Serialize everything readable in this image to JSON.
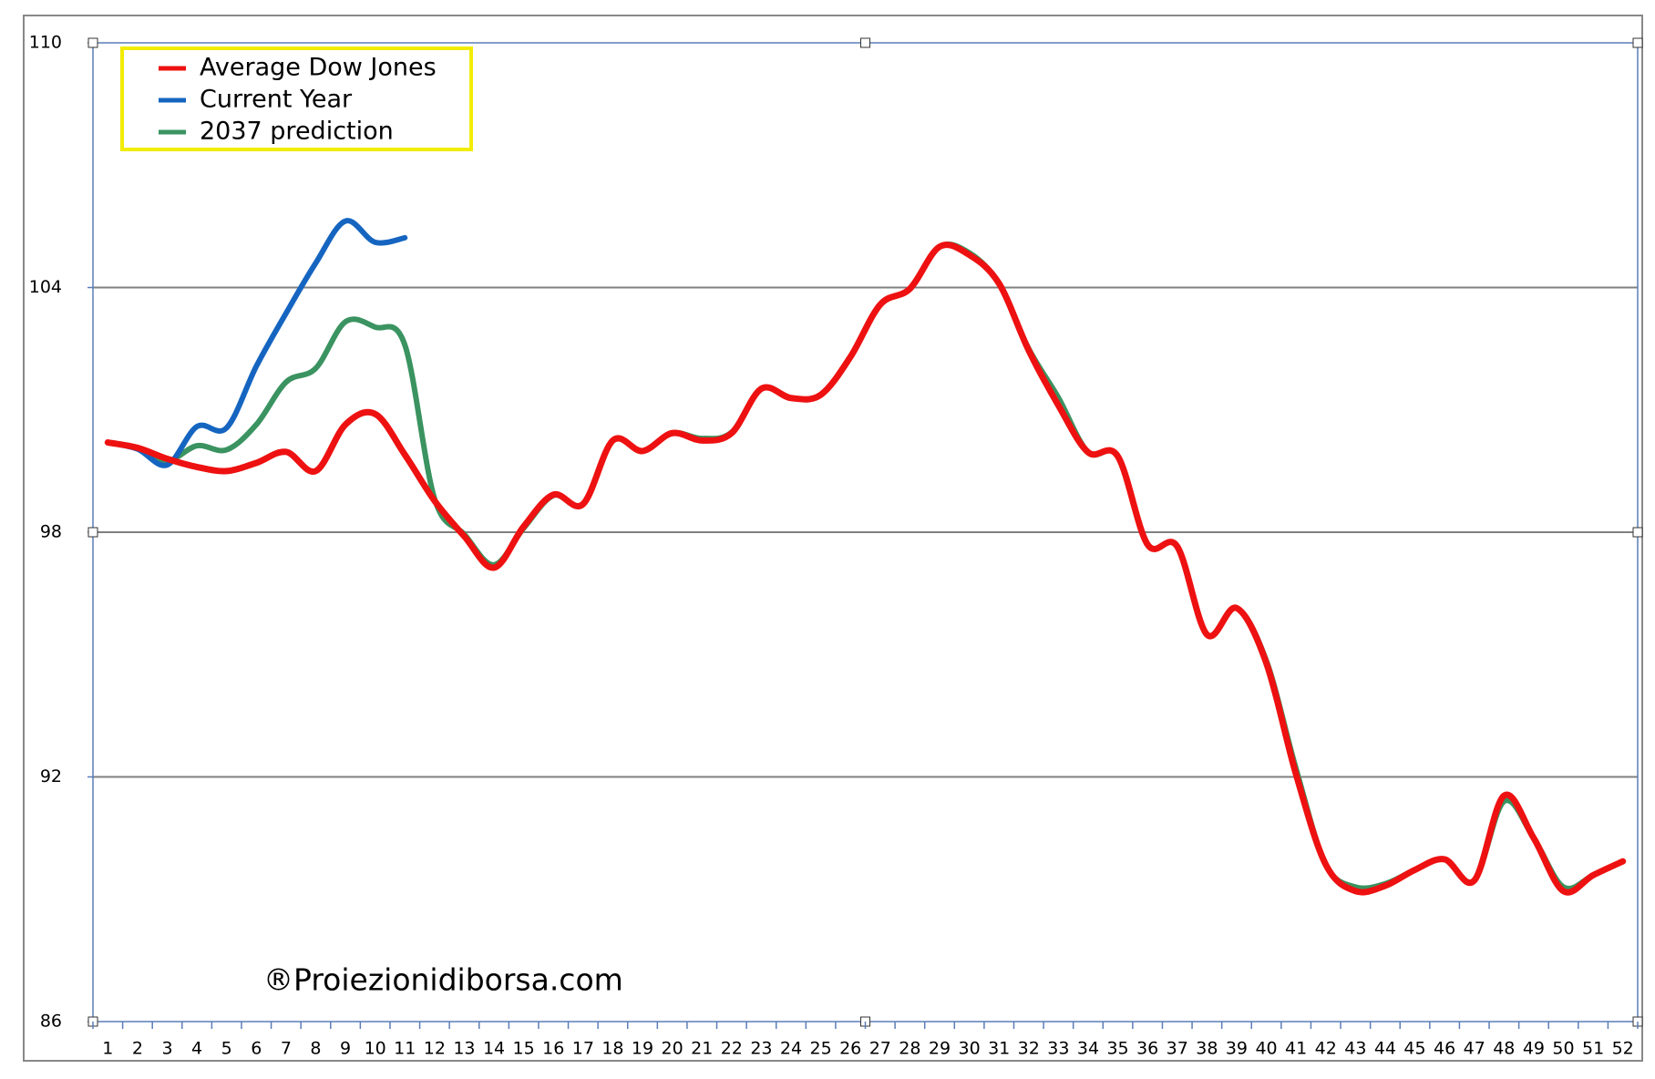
{
  "chart_data": {
    "type": "line",
    "categories": [
      "1",
      "2",
      "3",
      "4",
      "5",
      "6",
      "7",
      "8",
      "9",
      "10",
      "11",
      "12",
      "13",
      "14",
      "15",
      "16",
      "17",
      "18",
      "19",
      "20",
      "21",
      "22",
      "23",
      "24",
      "25",
      "26",
      "27",
      "28",
      "29",
      "30",
      "31",
      "32",
      "33",
      "34",
      "35",
      "36",
      "37",
      "38",
      "39",
      "40",
      "41",
      "42",
      "43",
      "44",
      "45",
      "46",
      "47",
      "48",
      "49",
      "50",
      "51",
      "52"
    ],
    "series": [
      {
        "name": "2037 prediction",
        "color": "#3a9360",
        "values": [
          100.2,
          100.07,
          99.75,
          100.12,
          100.02,
          100.64,
          101.68,
          102.02,
          103.16,
          103.03,
          102.59,
          98.82,
          97.95,
          97.2,
          98.1,
          98.9,
          98.7,
          100.25,
          99.99,
          100.43,
          100.3,
          100.45,
          101.52,
          101.29,
          101.37,
          102.3,
          103.58,
          103.97,
          105.0,
          104.85,
          104.1,
          102.5,
          101.3,
          99.96,
          99.86,
          97.7,
          97.65,
          95.49,
          96.14,
          94.85,
          92.2,
          89.85,
          89.3,
          89.38,
          89.72,
          89.98,
          89.46,
          91.4,
          90.5,
          89.3,
          89.59,
          89.93
        ]
      },
      {
        "name": "Current Year",
        "color": "#1565c0",
        "values": [
          100.2,
          100.04,
          99.65,
          100.59,
          100.56,
          102.07,
          103.37,
          104.6,
          105.63,
          105.11,
          105.22,
          null,
          null,
          null,
          null,
          null,
          null,
          null,
          null,
          null,
          null,
          null,
          null,
          null,
          null,
          null,
          null,
          null,
          null,
          null,
          null,
          null,
          null,
          null,
          null,
          null,
          null,
          null,
          null,
          null,
          null,
          null,
          null,
          null,
          null,
          null,
          null,
          null,
          null,
          null,
          null,
          null
        ]
      },
      {
        "name": "Average Dow Jones",
        "color": "#ee1111",
        "values": [
          100.2,
          100.07,
          99.8,
          99.6,
          99.5,
          99.7,
          99.97,
          99.5,
          100.64,
          100.9,
          99.9,
          98.77,
          97.9,
          97.13,
          98.14,
          98.92,
          98.69,
          100.25,
          99.99,
          100.43,
          100.25,
          100.43,
          101.52,
          101.29,
          101.37,
          102.3,
          103.58,
          103.97,
          105.0,
          104.8,
          104.1,
          102.46,
          101.11,
          99.96,
          99.86,
          97.7,
          97.65,
          95.49,
          96.14,
          94.79,
          92.06,
          89.85,
          89.2,
          89.33,
          89.72,
          89.98,
          89.46,
          91.54,
          90.5,
          89.2,
          89.59,
          89.93
        ]
      }
    ],
    "legend_order": [
      "Average Dow Jones",
      "Current Year",
      "2037 prediction"
    ],
    "ylim": [
      86,
      110
    ],
    "yticks": [
      86,
      92,
      98,
      104,
      110
    ],
    "grid": true,
    "legend": "upper left",
    "watermark": "®Proiezionidiborsa.com"
  }
}
